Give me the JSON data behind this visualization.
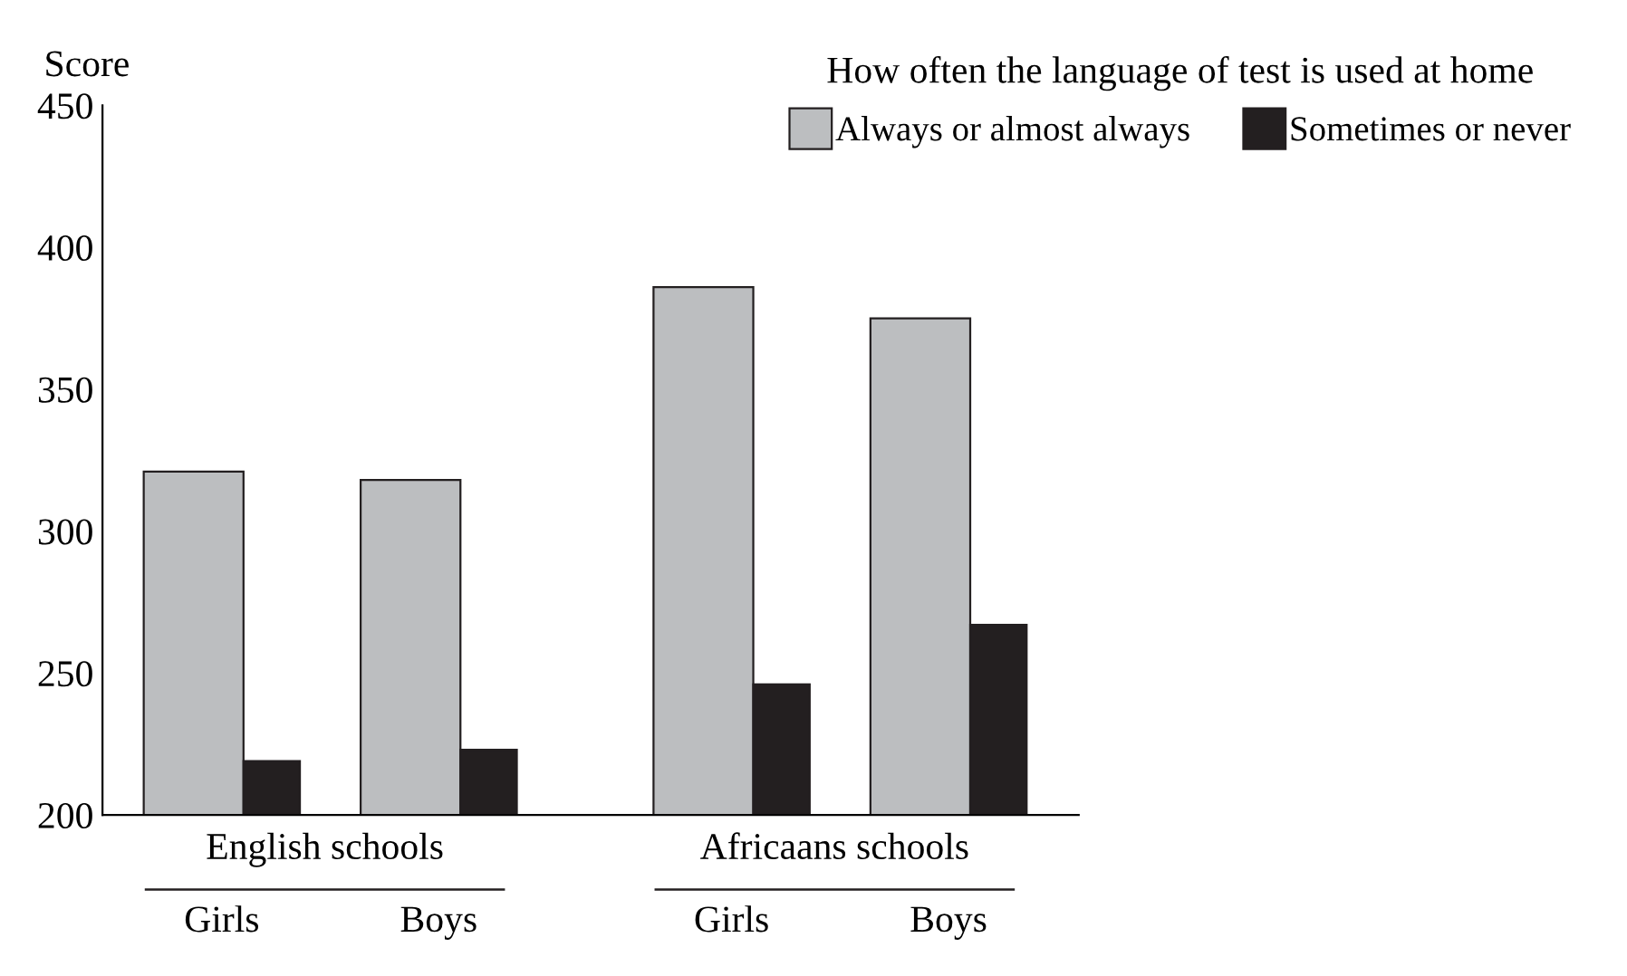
{
  "chart_data": {
    "type": "bar",
    "ylabel": "Score",
    "legend_title": "How often the language of test is used at home",
    "categories": [
      "Girls",
      "Boys",
      "Girls",
      "Boys"
    ],
    "series": [
      {
        "name": "Always or almost always",
        "color": "#bcbec0",
        "values": [
          321,
          318,
          386,
          375
        ]
      },
      {
        "name": "Sometimes or never",
        "color": "#231f20",
        "values": [
          219,
          223,
          246,
          267
        ]
      }
    ],
    "annotations": [
      "English schools",
      "Africaans schools"
    ],
    "ylim": [
      200,
      450
    ],
    "yticks": [
      200,
      250,
      300,
      350,
      400,
      450
    ],
    "grid": false,
    "legend": "top right"
  }
}
